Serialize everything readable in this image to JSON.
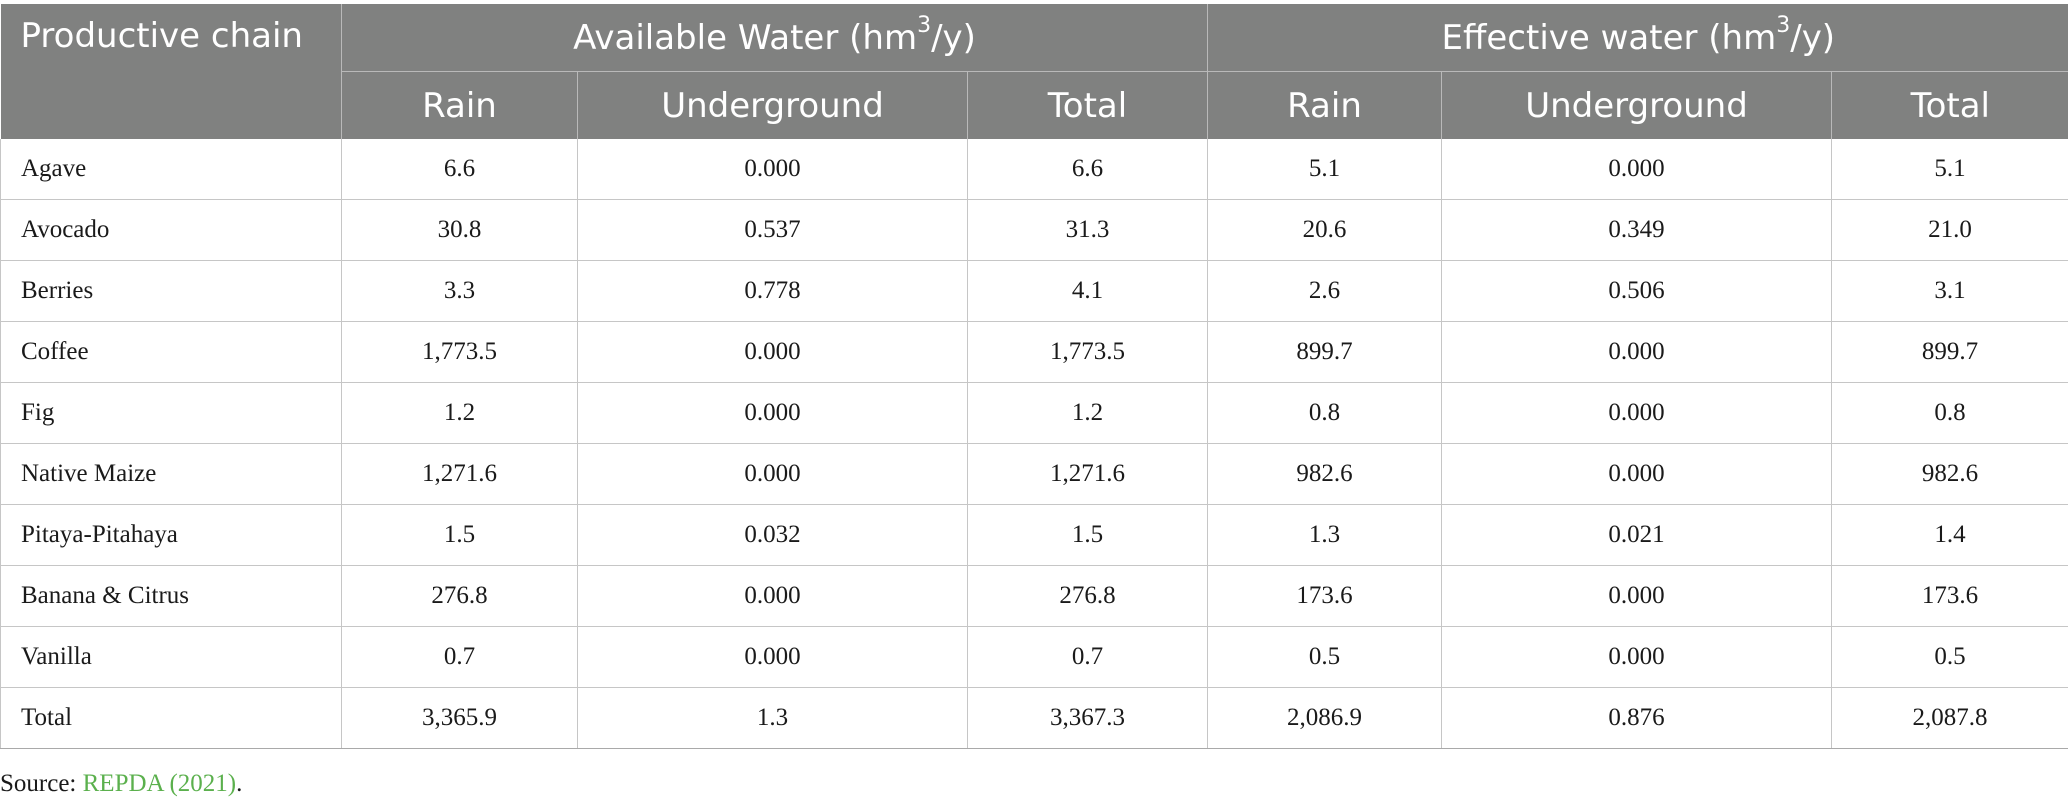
{
  "table": {
    "header": {
      "productive_chain": "Productive chain",
      "available_water": {
        "prefix": "Available Water (hm",
        "sup": "3",
        "suffix": "/y)"
      },
      "effective_water": {
        "prefix": "Effective water (hm",
        "sup": "3",
        "suffix": "/y)"
      },
      "sub_columns": [
        "Rain",
        "Underground",
        "Total",
        "Rain",
        "Underground",
        "Total"
      ]
    },
    "rows": [
      {
        "chain": "Agave",
        "avail_rain": "6.6",
        "avail_underground": "0.000",
        "avail_total": "6.6",
        "eff_rain": "5.1",
        "eff_underground": "0.000",
        "eff_total": "5.1"
      },
      {
        "chain": "Avocado",
        "avail_rain": "30.8",
        "avail_underground": "0.537",
        "avail_total": "31.3",
        "eff_rain": "20.6",
        "eff_underground": "0.349",
        "eff_total": "21.0"
      },
      {
        "chain": "Berries",
        "avail_rain": "3.3",
        "avail_underground": "0.778",
        "avail_total": "4.1",
        "eff_rain": "2.6",
        "eff_underground": "0.506",
        "eff_total": "3.1"
      },
      {
        "chain": "Coffee",
        "avail_rain": "1,773.5",
        "avail_underground": "0.000",
        "avail_total": "1,773.5",
        "eff_rain": "899.7",
        "eff_underground": "0.000",
        "eff_total": "899.7"
      },
      {
        "chain": "Fig",
        "avail_rain": "1.2",
        "avail_underground": "0.000",
        "avail_total": "1.2",
        "eff_rain": "0.8",
        "eff_underground": "0.000",
        "eff_total": "0.8"
      },
      {
        "chain": "Native Maize",
        "avail_rain": "1,271.6",
        "avail_underground": "0.000",
        "avail_total": "1,271.6",
        "eff_rain": "982.6",
        "eff_underground": "0.000",
        "eff_total": "982.6"
      },
      {
        "chain": "Pitaya-Pitahaya",
        "avail_rain": "1.5",
        "avail_underground": "0.032",
        "avail_total": "1.5",
        "eff_rain": "1.3",
        "eff_underground": "0.021",
        "eff_total": "1.4"
      },
      {
        "chain": "Banana & Citrus",
        "avail_rain": "276.8",
        "avail_underground": "0.000",
        "avail_total": "276.8",
        "eff_rain": "173.6",
        "eff_underground": "0.000",
        "eff_total": "173.6"
      },
      {
        "chain": "Vanilla",
        "avail_rain": "0.7",
        "avail_underground": "0.000",
        "avail_total": "0.7",
        "eff_rain": "0.5",
        "eff_underground": "0.000",
        "eff_total": "0.5"
      },
      {
        "chain": "Total",
        "avail_rain": "3,365.9",
        "avail_underground": "1.3",
        "avail_total": "3,367.3",
        "eff_rain": "2,086.9",
        "eff_underground": "0.876",
        "eff_total": "2,087.8"
      }
    ]
  },
  "source": {
    "label": "Source: ",
    "link_text": "REPDA (2021)",
    "end": "."
  },
  "colors": {
    "header_bg": "#808180",
    "header_text": "#ffffff",
    "link": "#5bb04d"
  }
}
